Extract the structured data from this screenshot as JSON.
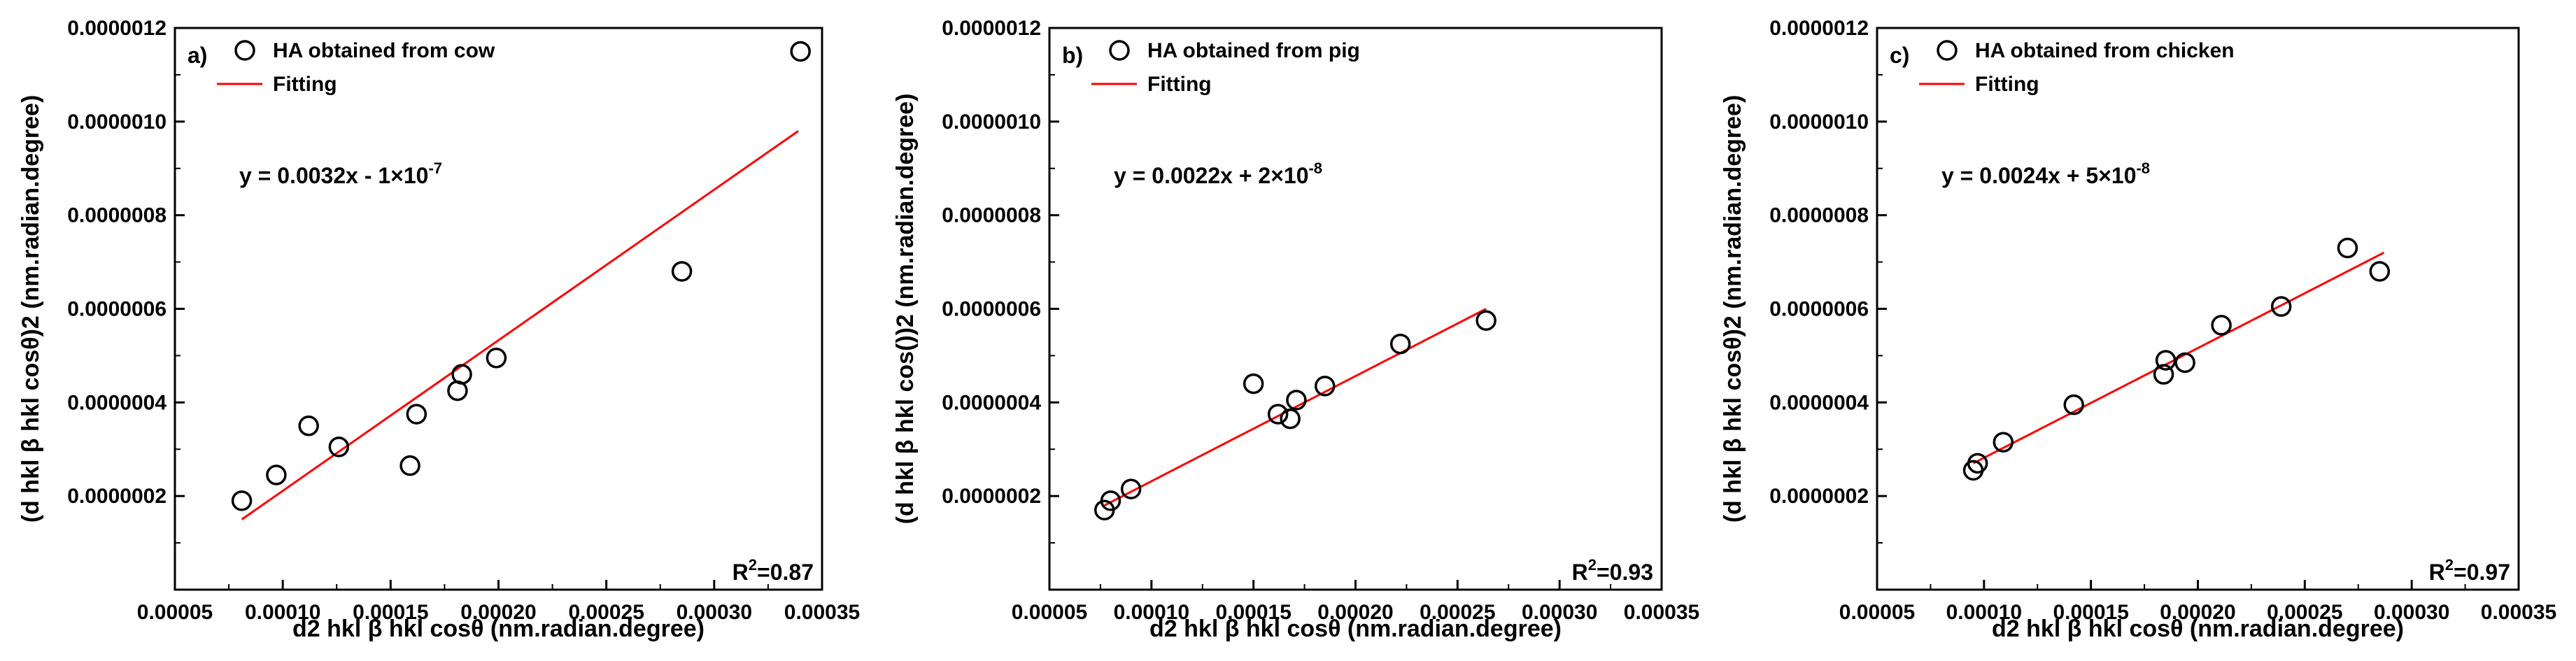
{
  "chart_data": [
    {
      "type": "scatter",
      "panel_label": "a)",
      "title": "",
      "xlabel": "d2 hkl β hkl cosθ (nm.radian.degree)",
      "ylabel": "(d hkl β hkl cosθ)2 (nm.radian.degree)",
      "xlim": [
        5e-05,
        0.00035
      ],
      "ylim": [
        0.0,
        1.2e-06
      ],
      "x_ticks": [
        "0.00005",
        "0.00010",
        "0.00015",
        "0.00020",
        "0.00025",
        "0.00030",
        "0.00035"
      ],
      "y_ticks": [
        "0.0000002",
        "0.0000004",
        "0.0000006",
        "0.0000008",
        "0.0000010",
        "0.0000012"
      ],
      "legend": [
        "HA obtained from cow",
        "Fitting"
      ],
      "legend_position": "top-left",
      "equation": "y = 0.0032x - 1×10",
      "equation_exp": "-7",
      "r2_label": "R",
      "r2_value": "=0.87",
      "marker_color": "#000000",
      "fit_color": "#ff0000",
      "series": [
        {
          "name": "HA obtained from cow",
          "x": [
            8.1e-05,
            9.7e-05,
            0.000112,
            0.000126,
            0.000159,
            0.000162,
            0.000181,
            0.000183,
            0.000199,
            0.000285,
            0.00034
          ],
          "y": [
            1.9e-07,
            2.45e-07,
            3.5e-07,
            3.05e-07,
            2.65e-07,
            3.75e-07,
            4.25e-07,
            4.6e-07,
            4.95e-07,
            6.8e-07,
            1.15e-06
          ]
        }
      ],
      "fit": {
        "x": [
          8.1e-05,
          0.000339
        ],
        "y": [
          1.5e-07,
          9.8e-07
        ]
      }
    },
    {
      "type": "scatter",
      "panel_label": "b)",
      "title": "",
      "xlabel": "d2 hkl β hkl cosθ (nm.radian.degree)",
      "ylabel": "(d hkl β hkl cos())2 (nm.radian.degree)",
      "xlim": [
        5e-05,
        0.00035
      ],
      "ylim": [
        0.0,
        1.2e-06
      ],
      "x_ticks": [
        "0.00005",
        "0.00010",
        "0.00015",
        "0.00020",
        "0.00025",
        "0.00030",
        "0.00035"
      ],
      "y_ticks": [
        "0.0000002",
        "0.0000004",
        "0.0000006",
        "0.0000008",
        "0.0000010",
        "0.0000012"
      ],
      "legend": [
        "HA obtained from pig",
        "Fitting"
      ],
      "legend_position": "top-left",
      "equation": "y = 0.0022x + 2×10",
      "equation_exp": "-8",
      "r2_label": "R",
      "r2_value": "=0.93",
      "marker_color": "#000000",
      "fit_color": "#ff0000",
      "series": [
        {
          "name": "HA obtained from pig",
          "x": [
            7.7e-05,
            8e-05,
            9e-05,
            0.00015,
            0.000162,
            0.000168,
            0.000171,
            0.000185,
            0.000222,
            0.000264
          ],
          "y": [
            1.7e-07,
            1.9e-07,
            2.15e-07,
            4.4e-07,
            3.75e-07,
            3.65e-07,
            4.05e-07,
            4.35e-07,
            5.25e-07,
            5.75e-07
          ]
        }
      ],
      "fit": {
        "x": [
          7.7e-05,
          0.000264
        ],
        "y": [
          1.8e-07,
          6e-07
        ]
      }
    },
    {
      "type": "scatter",
      "panel_label": "c)",
      "title": "",
      "xlabel": "d2 hkl β hkl cosθ (nm.radian.degree)",
      "ylabel": "(d hkl β hkl cosθ)2 (nm.radian.degree)",
      "xlim": [
        5e-05,
        0.00035
      ],
      "ylim": [
        0.0,
        1.2e-06
      ],
      "x_ticks": [
        "0.00005",
        "0.00010",
        "0.00015",
        "0.00020",
        "0.00025",
        "0.00030",
        "0.00035"
      ],
      "y_ticks": [
        "0.0000002",
        "0.0000004",
        "0.0000006",
        "0.0000008",
        "0.0000010",
        "0.0000012"
      ],
      "legend": [
        "HA obtained from chicken",
        "Fitting"
      ],
      "legend_position": "top-left",
      "equation": "y = 0.0024x + 5×10",
      "equation_exp": "-8",
      "r2_label": "R",
      "r2_value": "=0.97",
      "marker_color": "#000000",
      "fit_color": "#ff0000",
      "series": [
        {
          "name": "HA obtained from chicken",
          "x": [
            9.5e-05,
            9.7e-05,
            0.000109,
            0.000142,
            0.000184,
            0.000185,
            0.000194,
            0.000211,
            0.000239,
            0.00027,
            0.000285
          ],
          "y": [
            2.55e-07,
            2.7e-07,
            3.15e-07,
            3.95e-07,
            4.6e-07,
            4.9e-07,
            4.85e-07,
            5.65e-07,
            6.05e-07,
            7.3e-07,
            6.8e-07
          ]
        }
      ],
      "fit": {
        "x": [
          9.5e-05,
          0.000287
        ],
        "y": [
          2.7e-07,
          7.2e-07
        ]
      }
    }
  ]
}
